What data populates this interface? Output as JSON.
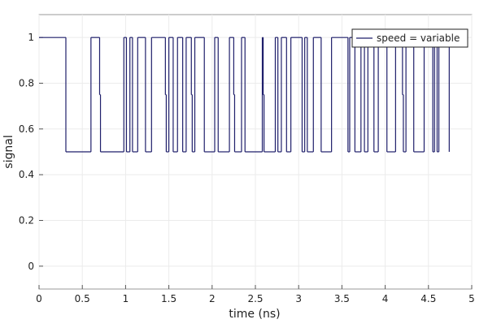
{
  "chart_data": {
    "type": "step",
    "x_label": "time (ns)",
    "y_label": "signal",
    "xlim": [
      0,
      5
    ],
    "ylim": [
      -0.1,
      1.1
    ],
    "xticks": [
      0,
      0.5,
      1,
      1.5,
      2,
      2.5,
      3,
      3.5,
      4,
      4.5,
      5
    ],
    "yticks": [
      0,
      0.2,
      0.4,
      0.6,
      0.8,
      1
    ],
    "grid": true,
    "legend": "upper right",
    "series": [
      {
        "name": "speed = variable",
        "color": "#1f1f6b",
        "x": [
          0,
          0.31,
          0.6,
          0.7,
          0.71,
          0.98,
          1.01,
          1.05,
          1.08,
          1.14,
          1.23,
          1.3,
          1.46,
          1.47,
          1.5,
          1.55,
          1.6,
          1.66,
          1.7,
          1.76,
          1.77,
          1.8,
          1.91,
          2.03,
          2.07,
          2.2,
          2.25,
          2.26,
          2.34,
          2.38,
          2.58,
          2.59,
          2.6,
          2.73,
          2.76,
          2.8,
          2.86,
          2.91,
          3.04,
          3.07,
          3.1,
          3.17,
          3.26,
          3.38,
          3.57,
          3.59,
          3.65,
          3.72,
          3.76,
          3.8,
          3.87,
          3.92,
          4.02,
          4.12,
          4.2,
          4.21,
          4.24,
          4.33,
          4.45,
          4.55,
          4.57,
          4.6,
          4.62,
          4.74
        ],
        "values": [
          1,
          0.5,
          1,
          0.75,
          0.5,
          1,
          0.5,
          1,
          0.5,
          1,
          0.5,
          1,
          0.75,
          0.5,
          1,
          0.5,
          1,
          0.5,
          1,
          0.75,
          0.5,
          1,
          0.5,
          1,
          0.5,
          1,
          0.75,
          0.5,
          1,
          0.5,
          1,
          0.75,
          0.5,
          1,
          0.5,
          1,
          0.5,
          1,
          0.5,
          1,
          0.5,
          1,
          0.5,
          1,
          0.5,
          1,
          0.5,
          1,
          0.5,
          1,
          0.5,
          1,
          0.5,
          1,
          0.75,
          0.5,
          1,
          0.5,
          1,
          0.5,
          1,
          0.5,
          1,
          0.5
        ]
      }
    ]
  }
}
